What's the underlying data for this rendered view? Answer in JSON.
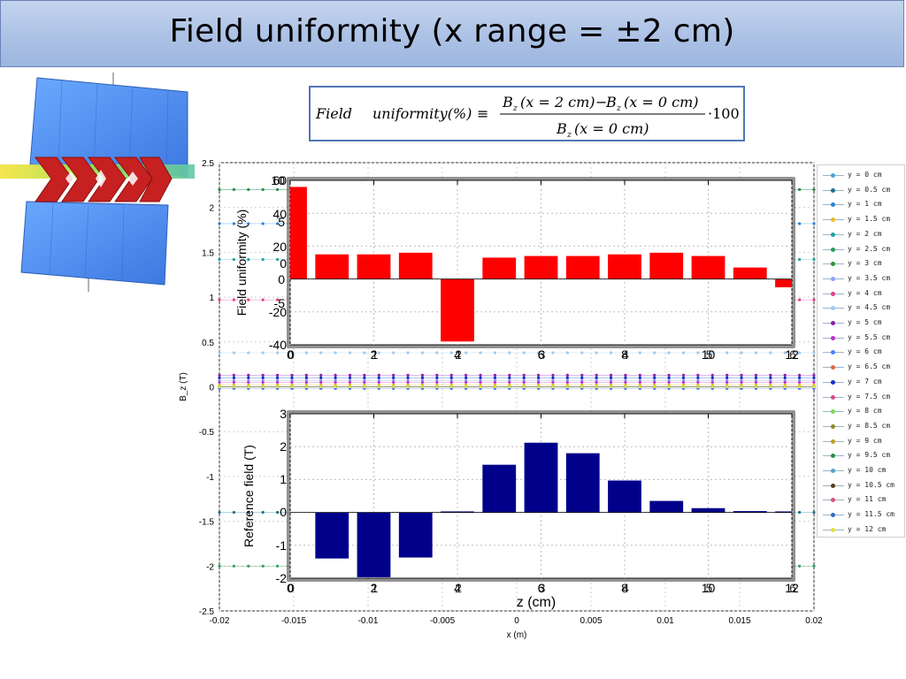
{
  "slide": {
    "title": "Field uniformity (x range = ±2 cm)"
  },
  "formula": {
    "lhs_a": "Field",
    "lhs_b": "uniformity(%)",
    "equiv": "≡",
    "num_a": "B",
    "num_a_sub": "z",
    "num_a_arg": "(x = 2 cm)",
    "minus": "−",
    "num_b": "B",
    "num_b_sub": "z",
    "num_b_arg": "(x = 0 cm)",
    "den": "B",
    "den_sub": "z",
    "den_arg": "(x = 0 cm)",
    "factor": "·100"
  },
  "colors": {
    "title_bg": "#b3c7e8",
    "formula_border": "#4f77b4",
    "uniformity_bar": "#ff0000",
    "reference_bar": "#00008b",
    "magnet_iron": "#4d8cf5",
    "magnet_coil": "#cc2222"
  },
  "chart_data": [
    {
      "type": "scatter",
      "xlabel": "x (m)",
      "ylabel": "B_z (T)",
      "xlim": [
        -0.02,
        0.02
      ],
      "ylim": [
        -2.5,
        2.5
      ],
      "x_ticks": [
        "-0.02",
        "-0.015",
        "-0.01",
        "-0.005",
        "0",
        "0.005",
        "0.01",
        "0.015",
        "0.02"
      ],
      "y_ticks": [
        "-2.5",
        "-2",
        "-1.5",
        "-1",
        "-0.5",
        "0",
        "0.5",
        "1",
        "1.5",
        "2",
        "2.5"
      ],
      "grid": true,
      "legend_position": "right",
      "series": [
        {
          "name": "y = 0 cm",
          "color": "#4aa3d9",
          "value": 2.2
        },
        {
          "name": "y = 0.5 cm",
          "color": "#1f6f8b",
          "value": -1.4
        },
        {
          "name": "y = 1 cm",
          "color": "#2a7fd4",
          "value": 1.82
        },
        {
          "name": "y = 1.5 cm",
          "color": "#e8c21a",
          "value": 0.02
        },
        {
          "name": "y = 2 cm",
          "color": "#23a0a0",
          "value": 1.42
        },
        {
          "name": "y = 2.5 cm",
          "color": "#2c9e5a",
          "value": -2.0
        },
        {
          "name": "y = 3 cm",
          "color": "#2f8f3a",
          "value": 2.2
        },
        {
          "name": "y = 3.5 cm",
          "color": "#8ea0ff",
          "value": 0.07
        },
        {
          "name": "y = 4 cm",
          "color": "#e0408a",
          "value": 0.97
        },
        {
          "name": "y = 4.5 cm",
          "color": "#9ecaf0",
          "value": 0.38
        },
        {
          "name": "y = 5 cm",
          "color": "#8b1fa8",
          "value": 0.13
        },
        {
          "name": "y = 5.5 cm",
          "color": "#c030c8",
          "value": 0.05
        },
        {
          "name": "y = 6 cm",
          "color": "#4f7fff",
          "value": -0.02
        },
        {
          "name": "y = 6.5 cm",
          "color": "#e06a3a",
          "value": 0.0
        },
        {
          "name": "y = 7 cm",
          "color": "#1a2fc0",
          "value": 0.1
        },
        {
          "name": "y = 7.5 cm",
          "color": "#d84b8c",
          "value": 0.0
        },
        {
          "name": "y = 8 cm",
          "color": "#7fd45a",
          "value": 0.0
        },
        {
          "name": "y = 8.5 cm",
          "color": "#8a8a2a",
          "value": 0.0
        },
        {
          "name": "y = 9 cm",
          "color": "#bfa020",
          "value": 0.0
        },
        {
          "name": "y = 9.5 cm",
          "color": "#1f8f4a",
          "value": 0.0
        },
        {
          "name": "y = 10 cm",
          "color": "#5aa0c8",
          "value": 0.0
        },
        {
          "name": "y = 10.5 cm",
          "color": "#5a3a1a",
          "value": 0.0
        },
        {
          "name": "y = 11 cm",
          "color": "#e0507a",
          "value": 0.0
        },
        {
          "name": "y = 11.5 cm",
          "color": "#2f6fbf",
          "value": 0.0
        },
        {
          "name": "y = 12 cm",
          "color": "#e0e040",
          "value": 0.0
        }
      ]
    },
    {
      "type": "bar",
      "ylabel": "Field uniformity (%)",
      "xlim": [
        0,
        12
      ],
      "ylim": [
        -40,
        60
      ],
      "x_tick_labels_a": [
        "0",
        "2",
        "4",
        "6",
        "8",
        "10",
        "12"
      ],
      "x_tick_labels_b": [
        "0",
        "1",
        "2",
        "3",
        "4",
        "5",
        "6"
      ],
      "y_tick_labels_a": [
        "-40",
        "-20",
        "0",
        "20",
        "40",
        "60"
      ],
      "y_tick_labels_b": [
        "-5",
        "0",
        "5",
        "10"
      ],
      "grid": true,
      "x": [
        0,
        1,
        2,
        3,
        4,
        5,
        6,
        7,
        8,
        9,
        10,
        11,
        12
      ],
      "values": [
        56,
        15,
        15,
        16,
        -38,
        13,
        14,
        14,
        15,
        16,
        14,
        7,
        -5
      ]
    },
    {
      "type": "bar",
      "xlabel": "z (cm)",
      "ylabel": "Reference field (T)",
      "xlim": [
        0,
        12
      ],
      "ylim": [
        -2,
        3
      ],
      "x_tick_labels_a": [
        "0",
        "2",
        "4",
        "6",
        "8",
        "10",
        "12"
      ],
      "x_tick_labels_b": [
        "0",
        "1",
        "2",
        "3",
        "4",
        "5",
        "6"
      ],
      "y_tick_labels": [
        "-2",
        "-1",
        "0",
        "1",
        "2",
        "3"
      ],
      "grid": true,
      "x": [
        0,
        1,
        2,
        3,
        4,
        5,
        6,
        7,
        8,
        9,
        10,
        11,
        12
      ],
      "values": [
        0,
        -1.4,
        -1.97,
        -1.37,
        0.03,
        1.45,
        2.12,
        1.8,
        0.97,
        0.35,
        0.13,
        0.04,
        0.03
      ]
    }
  ]
}
